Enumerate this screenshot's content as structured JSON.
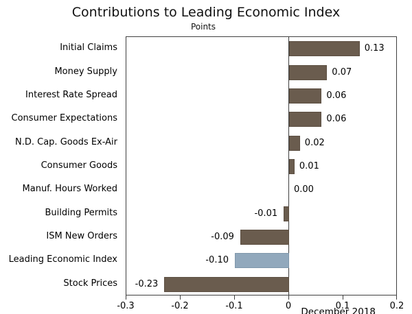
{
  "chart_data": {
    "type": "bar",
    "orientation": "horizontal",
    "title": "Contributions to Leading Economic Index",
    "subtitle": "Points",
    "annotation": "December 2018",
    "categories": [
      "Initial Claims",
      "Money Supply",
      "Interest Rate Spread",
      "Consumer Expectations",
      "N.D. Cap. Goods Ex-Air",
      "Consumer Goods",
      "Manuf. Hours Worked",
      "Building Permits",
      "ISM New Orders",
      "Leading Economic Index",
      "Stock Prices"
    ],
    "values": [
      0.13,
      0.07,
      0.06,
      0.06,
      0.02,
      0.01,
      0.0,
      -0.01,
      -0.09,
      -0.1,
      -0.23
    ],
    "value_labels": [
      "0.13",
      "0.07",
      "0.06",
      "0.06",
      "0.02",
      "0.01",
      "0.00",
      "-0.01",
      "-0.09",
      "-0.10",
      "-0.23"
    ],
    "highlight_category": "Leading Economic Index",
    "xlim": [
      -0.3,
      0.2
    ],
    "x_ticks": [
      {
        "value": -0.3,
        "label": "-0.3"
      },
      {
        "value": -0.2,
        "label": "-0.2"
      },
      {
        "value": -0.1,
        "label": "-0.1"
      },
      {
        "value": 0,
        "label": "0"
      },
      {
        "value": 0.1,
        "label": "0.1"
      },
      {
        "value": 0.2,
        "label": "0.2"
      }
    ],
    "legend": "none",
    "grid": "off",
    "colors": {
      "bar_default": "#6a5c4e",
      "bar_highlight": "#91a8bc",
      "axis": "#3f3f3f",
      "text": "#000000",
      "background": "#ffffff"
    }
  }
}
